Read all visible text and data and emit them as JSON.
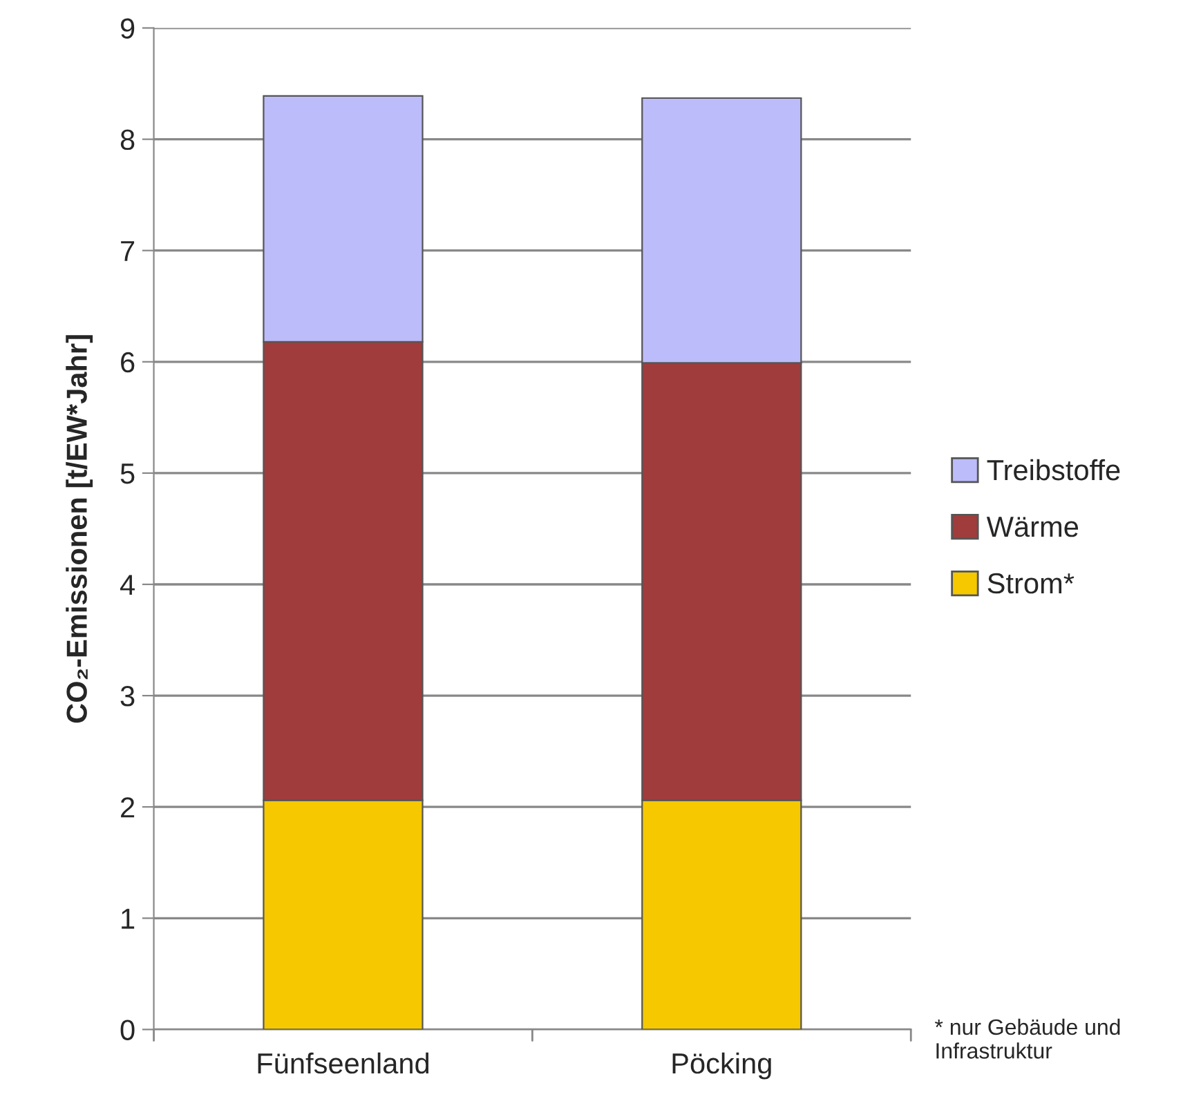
{
  "chart_data": {
    "type": "bar",
    "stacked": true,
    "ylabel": "CO₂-Emissionen [t/EW*Jahr]",
    "categories": [
      "Fünfseenland",
      "Pöcking"
    ],
    "series": [
      {
        "name": "Strom*",
        "color": "#f5c800",
        "values": [
          2.06,
          2.06
        ]
      },
      {
        "name": "Wärme",
        "color": "#a03c3c",
        "values": [
          4.12,
          3.93
        ]
      },
      {
        "name": "Treibstoffe",
        "color": "#bcbcfa",
        "values": [
          2.21,
          2.38
        ]
      }
    ],
    "ylim": [
      0,
      9
    ],
    "yticks": [
      0,
      1,
      2,
      3,
      4,
      5,
      6,
      7,
      8,
      9
    ],
    "grid": "y",
    "legend": "right",
    "annotations": [
      "* nur Gebäude und Infrastruktur"
    ]
  }
}
